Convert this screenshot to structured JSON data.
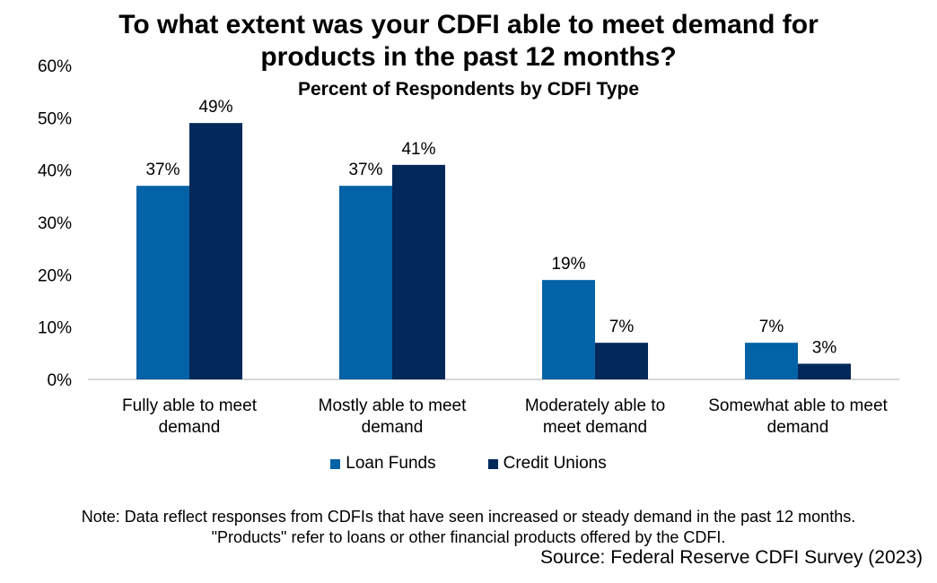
{
  "chart_data": {
    "type": "bar",
    "title_line1": "To what extent was your CDFI able to meet demand for",
    "title_line2": "products in the past 12 months?",
    "subtitle": "Percent of Respondents by CDFI Type",
    "categories": [
      [
        "Fully able to meet",
        "demand"
      ],
      [
        "Mostly able to meet",
        "demand"
      ],
      [
        "Moderately able to",
        "meet demand"
      ],
      [
        "Somewhat able to meet",
        "demand"
      ]
    ],
    "series": [
      {
        "name": "Loan Funds",
        "color": "#0462a6",
        "values": [
          37,
          37,
          19,
          7
        ],
        "labels": [
          "37%",
          "37%",
          "19%",
          "7%"
        ]
      },
      {
        "name": "Credit Unions",
        "color": "#03295a",
        "values": [
          49,
          41,
          7,
          3
        ],
        "labels": [
          "49%",
          "41%",
          "7%",
          "3%"
        ]
      }
    ],
    "ylim": [
      0,
      60
    ],
    "yticks": [
      "0%",
      "10%",
      "20%",
      "30%",
      "40%",
      "50%",
      "60%"
    ],
    "grid": false,
    "legend_position": "bottom"
  },
  "note_line1": "Note: Data reflect responses from CDFIs that have seen increased or steady demand in the past 12 months.",
  "note_line2": "\"Products\" refer to loans or other financial products offered by the CDFI.",
  "source": "Source: Federal Reserve CDFI Survey (2023)"
}
